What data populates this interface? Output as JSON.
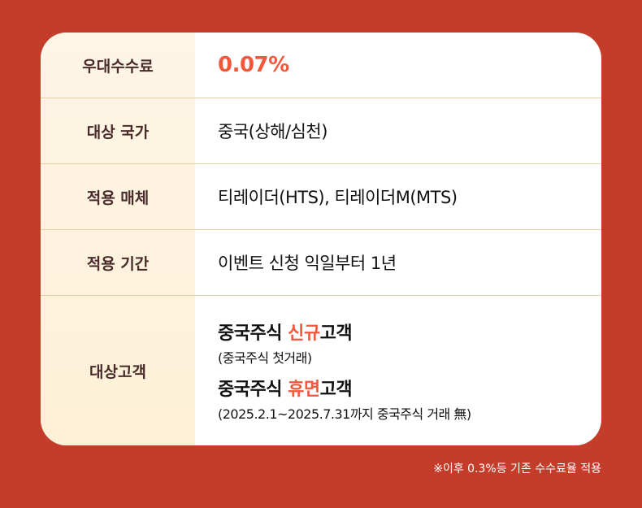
{
  "colors": {
    "background": "#c43d2a",
    "accent": "#f4573b",
    "label_text": "#4a2b2b",
    "label_bg": "#fdf3e0"
  },
  "rows": [
    {
      "label": "우대수수료",
      "value": "0.07%"
    },
    {
      "label": "대상 국가",
      "value": "중국(상해/심천)"
    },
    {
      "label": "적용 매체",
      "value": "티레이더(HTS), 티레이더M(MTS)"
    },
    {
      "label": "적용 기간",
      "value": "이벤트 신청 익일부터 1년"
    }
  ],
  "target": {
    "label": "대상고객",
    "new": {
      "prefix": "중국주식 ",
      "highlight": "신규",
      "suffix": "고객",
      "note": "(중국주식 첫거래)"
    },
    "dormant": {
      "prefix": "중국주식 ",
      "highlight": "휴면",
      "suffix": "고객",
      "note": "(2025.2.1~2025.7.31까지 중국주식 거래 無)"
    }
  },
  "footnote": "※이후 0.3%등 기존 수수료율 적용"
}
